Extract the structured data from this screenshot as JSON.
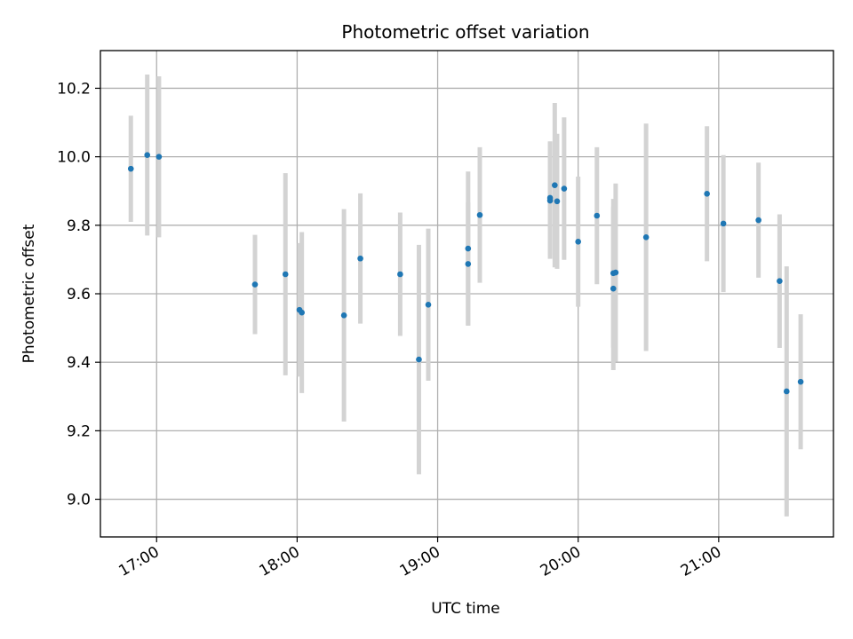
{
  "chart_data": {
    "type": "scatter",
    "title": "Photometric offset variation",
    "xlabel": "UTC time",
    "ylabel": "Photometric offset",
    "xlim": [
      "16:36",
      "21:49"
    ],
    "ylim": [
      8.89,
      10.31
    ],
    "x_ticks": [
      "17:00",
      "18:00",
      "19:00",
      "20:00",
      "21:00"
    ],
    "y_ticks": [
      9.0,
      9.2,
      9.4,
      9.6,
      9.8,
      10.0,
      10.2
    ],
    "y_tick_labels": [
      "9.0",
      "9.2",
      "9.4",
      "9.6",
      "9.8",
      "10.0",
      "10.2"
    ],
    "grid": true,
    "colors": {
      "point": "#1f77b4",
      "errorbar": "#d3d3d3",
      "grid": "#b0b0b0"
    },
    "series": [
      {
        "points": [
          {
            "x": "16:49",
            "y": 9.965,
            "err": 0.155
          },
          {
            "x": "16:56",
            "y": 10.005,
            "err": 0.235
          },
          {
            "x": "17:01",
            "y": 10.0,
            "err": 0.235
          },
          {
            "x": "17:42",
            "y": 9.627,
            "err": 0.145
          },
          {
            "x": "17:55",
            "y": 9.657,
            "err": 0.295
          },
          {
            "x": "18:01",
            "y": 9.553,
            "err": 0.195
          },
          {
            "x": "18:02",
            "y": 9.545,
            "err": 0.235
          },
          {
            "x": "18:20",
            "y": 9.537,
            "err": 0.31
          },
          {
            "x": "18:27",
            "y": 9.703,
            "err": 0.19
          },
          {
            "x": "18:44",
            "y": 9.657,
            "err": 0.18
          },
          {
            "x": "18:52",
            "y": 9.408,
            "err": 0.335
          },
          {
            "x": "18:56",
            "y": 9.568,
            "err": 0.222
          },
          {
            "x": "19:13",
            "y": 9.732,
            "err": 0.225
          },
          {
            "x": "19:13",
            "y": 9.687,
            "err": 0.18
          },
          {
            "x": "19:18",
            "y": 9.83,
            "err": 0.198
          },
          {
            "x": "19:48",
            "y": 9.88,
            "err": 0.165
          },
          {
            "x": "19:48",
            "y": 9.872,
            "err": 0.17
          },
          {
            "x": "19:50",
            "y": 9.917,
            "err": 0.24
          },
          {
            "x": "19:51",
            "y": 9.87,
            "err": 0.197
          },
          {
            "x": "19:54",
            "y": 9.907,
            "err": 0.208
          },
          {
            "x": "20:00",
            "y": 9.752,
            "err": 0.19
          },
          {
            "x": "20:08",
            "y": 9.828,
            "err": 0.2
          },
          {
            "x": "20:15",
            "y": 9.66,
            "err": 0.217
          },
          {
            "x": "20:15",
            "y": 9.615,
            "err": 0.238
          },
          {
            "x": "20:16",
            "y": 9.662,
            "err": 0.26
          },
          {
            "x": "20:29",
            "y": 9.765,
            "err": 0.332
          },
          {
            "x": "20:55",
            "y": 9.892,
            "err": 0.197
          },
          {
            "x": "21:02",
            "y": 9.805,
            "err": 0.2
          },
          {
            "x": "21:17",
            "y": 9.815,
            "err": 0.168
          },
          {
            "x": "21:26",
            "y": 9.637,
            "err": 0.195
          },
          {
            "x": "21:29",
            "y": 9.315,
            "err": 0.365
          },
          {
            "x": "21:35",
            "y": 9.343,
            "err": 0.197
          }
        ]
      }
    ]
  }
}
